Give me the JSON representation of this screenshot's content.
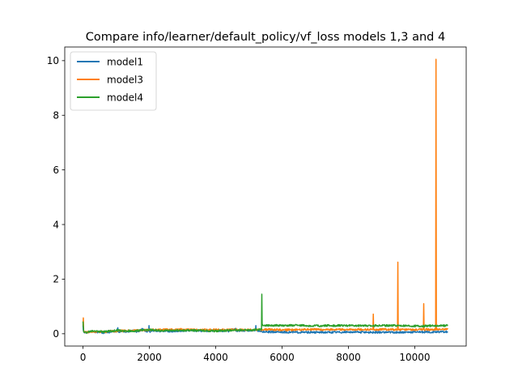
{
  "chart_data": {
    "type": "line",
    "title": "Compare info/learner/default_policy/vf_loss models 1,3 and 4",
    "xlabel": "",
    "ylabel": "",
    "xlim": [
      -550,
      11550
    ],
    "ylim": [
      -0.45,
      10.5
    ],
    "x_ticks": [
      0,
      2000,
      4000,
      6000,
      8000,
      10000
    ],
    "x_tick_labels": [
      "0",
      "2000",
      "4000",
      "6000",
      "8000",
      "10000"
    ],
    "y_ticks": [
      0,
      2,
      4,
      6,
      8,
      10
    ],
    "y_tick_labels": [
      "0",
      "2",
      "4",
      "6",
      "8",
      "10"
    ],
    "grid": false,
    "legend_position": "top-left",
    "series": [
      {
        "name": "model1",
        "color": "#1f77b4",
        "x": [
          0,
          10,
          30,
          60,
          100,
          200,
          300,
          400,
          500,
          600,
          700,
          800,
          900,
          1000,
          1050,
          1060,
          1070,
          1200,
          1400,
          1500,
          1600,
          1700,
          1800,
          1900,
          1980,
          1990,
          2000,
          2010,
          2100,
          2400,
          2800,
          3200,
          3600,
          4000,
          4400,
          4600,
          4610,
          4620,
          5000,
          5200,
          5210,
          5220,
          5380,
          5400,
          6000,
          7000,
          8000,
          9000,
          10000,
          11000
        ],
        "values": [
          0.3,
          0.12,
          0.05,
          0.08,
          0.04,
          0.06,
          0.1,
          0.05,
          0.08,
          0.04,
          0.07,
          0.05,
          0.09,
          0.06,
          0.22,
          0.08,
          0.06,
          0.1,
          0.07,
          0.12,
          0.08,
          0.1,
          0.18,
          0.08,
          0.1,
          0.3,
          0.1,
          0.08,
          0.12,
          0.09,
          0.1,
          0.13,
          0.1,
          0.12,
          0.1,
          0.2,
          0.1,
          0.11,
          0.12,
          0.12,
          0.3,
          0.12,
          0.1,
          0.07,
          0.06,
          0.05,
          0.06,
          0.05,
          0.06,
          0.07
        ]
      },
      {
        "name": "model3",
        "color": "#ff7f0e",
        "x": [
          0,
          10,
          20,
          30,
          50,
          100,
          300,
          600,
          1000,
          1500,
          2000,
          2500,
          3000,
          3500,
          4000,
          4500,
          5000,
          5500,
          6000,
          6500,
          7000,
          7500,
          8000,
          8500,
          8740,
          8750,
          8760,
          9000,
          9480,
          9490,
          9500,
          9510,
          9800,
          10000,
          10260,
          10270,
          10280,
          10500,
          10630,
          10640,
          10650,
          10800,
          11000
        ],
        "values": [
          0.3,
          0.58,
          0.1,
          0.06,
          0.07,
          0.06,
          0.08,
          0.07,
          0.1,
          0.12,
          0.14,
          0.15,
          0.16,
          0.14,
          0.15,
          0.15,
          0.14,
          0.16,
          0.14,
          0.15,
          0.16,
          0.15,
          0.15,
          0.16,
          0.15,
          0.72,
          0.15,
          0.16,
          0.15,
          2.62,
          0.16,
          0.15,
          0.16,
          0.15,
          0.16,
          1.1,
          0.16,
          0.15,
          0.16,
          10.05,
          0.16,
          0.15,
          0.17
        ]
      },
      {
        "name": "model4",
        "color": "#2ca02c",
        "x": [
          0,
          20,
          40,
          60,
          100,
          200,
          400,
          600,
          800,
          1000,
          1500,
          2000,
          2500,
          3000,
          3500,
          4000,
          4500,
          5000,
          5380,
          5390,
          5400,
          5410,
          5450,
          5600,
          6000,
          6500,
          7000,
          7500,
          8000,
          8500,
          9000,
          9500,
          10000,
          10500,
          11000
        ],
        "values": [
          0.45,
          0.08,
          0.05,
          0.06,
          0.05,
          0.08,
          0.1,
          0.07,
          0.09,
          0.12,
          0.1,
          0.14,
          0.11,
          0.13,
          0.12,
          0.1,
          0.13,
          0.14,
          0.15,
          1.45,
          0.3,
          0.34,
          0.3,
          0.31,
          0.3,
          0.31,
          0.29,
          0.3,
          0.3,
          0.29,
          0.3,
          0.3,
          0.28,
          0.29,
          0.3
        ]
      }
    ]
  }
}
